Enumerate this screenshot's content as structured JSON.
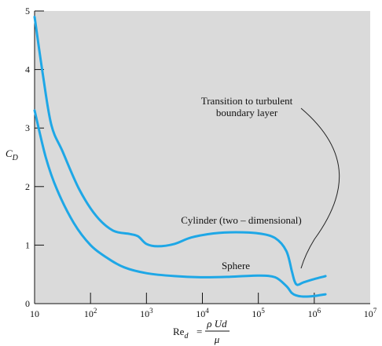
{
  "chart_data": {
    "type": "line",
    "title": "",
    "ylabel_main": "C",
    "ylabel_sub": "D",
    "xlabel": {
      "main": "Re",
      "sub": "d",
      "eq": "=",
      "numerator": "ρ Ud",
      "denominator": "μ"
    },
    "x_log": true,
    "xlim": [
      1,
      7
    ],
    "ylim": [
      0,
      5
    ],
    "y_ticks": [
      "0",
      "1",
      "2",
      "3",
      "4",
      "5"
    ],
    "x_ticks": [
      {
        "base": "10",
        "exp": ""
      },
      {
        "base": "10",
        "exp": "2"
      },
      {
        "base": "10",
        "exp": "3"
      },
      {
        "base": "10",
        "exp": "4"
      },
      {
        "base": "10",
        "exp": "5"
      },
      {
        "base": "10",
        "exp": "6"
      },
      {
        "base": "10",
        "exp": "7"
      }
    ],
    "series": [
      {
        "name": "Cylinder (two – dimensional)",
        "color": "#1ea7e6",
        "x": [
          1.0,
          1.15,
          1.3,
          1.5,
          1.8,
          2.1,
          2.4,
          2.7,
          2.85,
          3.0,
          3.2,
          3.5,
          3.8,
          4.2,
          4.6,
          5.0,
          5.3,
          5.5,
          5.6,
          5.65,
          5.7,
          5.8,
          6.0,
          6.2
        ],
        "y": [
          4.9,
          3.9,
          3.05,
          2.6,
          1.95,
          1.5,
          1.25,
          1.19,
          1.15,
          1.02,
          0.98,
          1.02,
          1.13,
          1.2,
          1.22,
          1.2,
          1.12,
          0.9,
          0.55,
          0.38,
          0.32,
          0.36,
          0.42,
          0.47
        ]
      },
      {
        "name": "Sphere",
        "color": "#1ea7e6",
        "x": [
          1.0,
          1.2,
          1.4,
          1.7,
          2.0,
          2.3,
          2.6,
          3.0,
          3.5,
          4.0,
          4.5,
          5.0,
          5.3,
          5.5,
          5.6,
          5.68,
          5.8,
          6.0,
          6.2
        ],
        "y": [
          3.3,
          2.5,
          1.95,
          1.38,
          1.0,
          0.78,
          0.62,
          0.52,
          0.47,
          0.45,
          0.46,
          0.48,
          0.45,
          0.3,
          0.18,
          0.14,
          0.12,
          0.13,
          0.16
        ]
      }
    ],
    "annotations": {
      "transition": [
        "Transition to turbulent",
        "boundary layer"
      ],
      "cylinder_label": "Cylinder (two – dimensional)",
      "sphere_label": "Sphere"
    },
    "grid": false,
    "background": "#dadada"
  }
}
